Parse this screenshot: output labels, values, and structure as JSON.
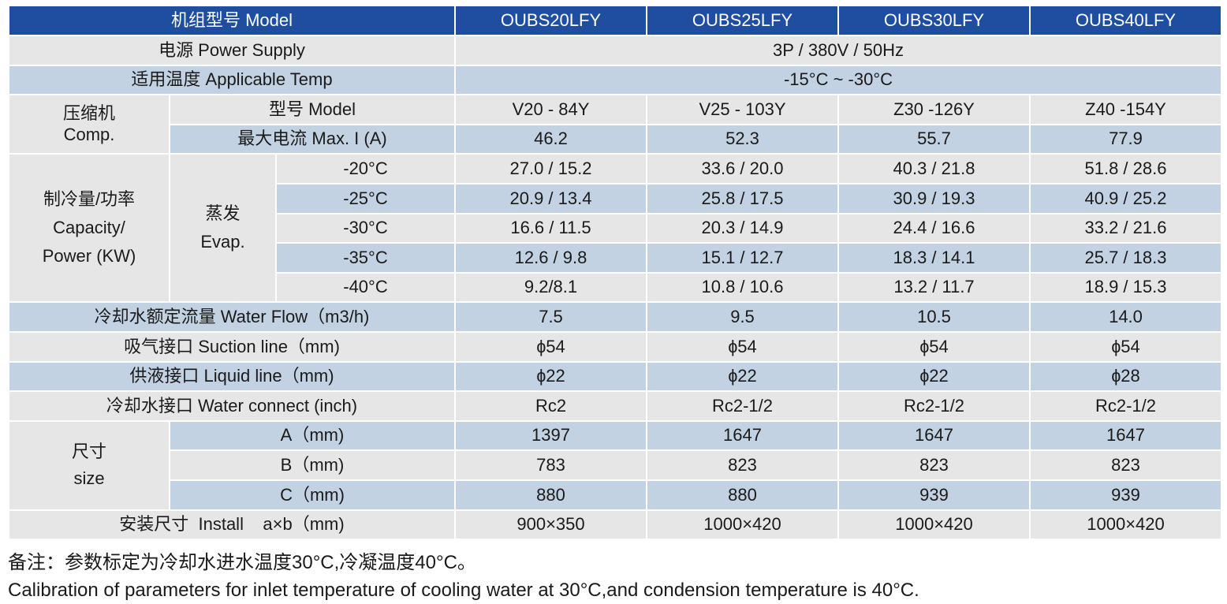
{
  "table": {
    "header": {
      "label": "机组型号 Model",
      "models": [
        "OUBS20LFY",
        "OUBS25LFY",
        "OUBS30LFY",
        "OUBS40LFY"
      ]
    },
    "power_supply": {
      "label": "电源 Power Supply",
      "value": "3P / 380V / 50Hz"
    },
    "applicable_temp": {
      "label": "适用温度 Applicable Temp",
      "value": "-15°C ~ -30°C"
    },
    "compressor": {
      "group_cn": "压缩机",
      "group_en": "Comp.",
      "model_label": "型号 Model",
      "models": [
        "V20 - 84Y",
        "V25 - 103Y",
        "Z30 -126Y",
        "Z40 -154Y"
      ],
      "max_current_label": "最大电流 Max. I (A)",
      "max_current": [
        "46.2",
        "52.3",
        "55.7",
        "77.9"
      ]
    },
    "capacity": {
      "group_cn": "制冷量/功率",
      "group_en1": "Capacity/",
      "group_en2": "Power (KW)",
      "evap_cn": "蒸发",
      "evap_en": "Evap.",
      "rows": [
        {
          "temp": "-20°C",
          "values": [
            "27.0 / 15.2",
            "33.6 / 20.0",
            "40.3 / 21.8",
            "51.8 / 28.6"
          ]
        },
        {
          "temp": "-25°C",
          "values": [
            "20.9 / 13.4",
            "25.8 / 17.5",
            "30.9 / 19.3",
            "40.9 / 25.2"
          ]
        },
        {
          "temp": "-30°C",
          "values": [
            "16.6 / 11.5",
            "20.3 / 14.9",
            "24.4 / 16.6",
            "33.2 / 21.6"
          ]
        },
        {
          "temp": "-35°C",
          "values": [
            "12.6 / 9.8",
            "15.1 / 12.7",
            "18.3 / 14.1",
            "25.7 / 18.3"
          ]
        },
        {
          "temp": "-40°C",
          "values": [
            "9.2/8.1",
            "10.8 / 10.6",
            "13.2 / 11.7",
            "18.9 / 15.3"
          ]
        }
      ]
    },
    "water_flow": {
      "label": "冷却水额定流量 Water Flow（m3/h)",
      "values": [
        "7.5",
        "9.5",
        "10.5",
        "14.0"
      ]
    },
    "suction_line": {
      "label": "吸气接口 Suction line（mm)",
      "values": [
        "ɸ54",
        "ɸ54",
        "ɸ54",
        "ɸ54"
      ]
    },
    "liquid_line": {
      "label": "供液接口 Liquid line（mm)",
      "values": [
        "ɸ22",
        "ɸ22",
        "ɸ22",
        "ɸ28"
      ]
    },
    "water_connect": {
      "label": "冷却水接口 Water connect (inch)",
      "values": [
        "Rc2",
        "Rc2-1/2",
        "Rc2-1/2",
        "Rc2-1/2"
      ]
    },
    "size": {
      "group_cn": "尺寸",
      "group_en": "size",
      "rows": [
        {
          "label": "A（mm)",
          "values": [
            "1397",
            "1647",
            "1647",
            "1647"
          ]
        },
        {
          "label": "B（mm)",
          "values": [
            "783",
            "823",
            "823",
            "823"
          ]
        },
        {
          "label": "C（mm)",
          "values": [
            "880",
            "880",
            "939",
            "939"
          ]
        }
      ]
    },
    "install": {
      "label": "安装尺寸  Install    a×b（mm)",
      "values": [
        "900×350",
        "1000×420",
        "1000×420",
        "1000×420"
      ]
    }
  },
  "notes": {
    "cn": "备注：参数标定为冷却水进水温度30°C,冷凝温度40°C。",
    "en": "Calibration of parameters for inlet temperature of cooling water at 30°C,and condension temperature is 40°C."
  },
  "colors": {
    "header_bg": "#1f4ea1",
    "row_gray": "#e6e6e6",
    "row_blue": "#c2d2e2"
  }
}
